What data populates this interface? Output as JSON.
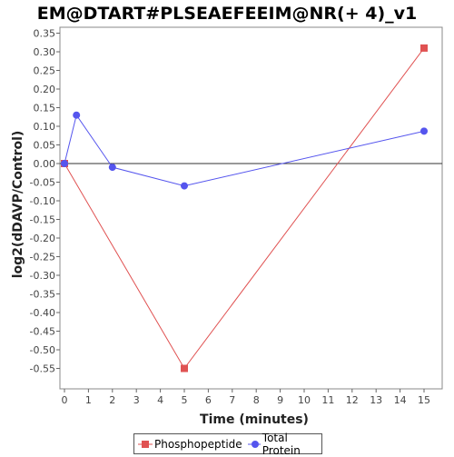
{
  "chart_data": {
    "type": "line",
    "title": "EM@DTART#PLSEAEFEEIM@NR(+ 4)_v1",
    "xlabel": "Time (minutes)",
    "ylabel": "log2(dDAVP/Control)",
    "xlim": [
      0,
      15.8
    ],
    "ylim": [
      -0.59,
      0.35
    ],
    "xticks": [
      "0",
      "1",
      "2",
      "3",
      "4",
      "5",
      "6",
      "7",
      "8",
      "9",
      "10",
      "11",
      "12",
      "13",
      "14",
      "15"
    ],
    "yticks": [
      "0.35",
      "0.30",
      "0.25",
      "0.20",
      "0.15",
      "0.10",
      "0.05",
      "0.00",
      "-0.05",
      "-0.10",
      "-0.15",
      "-0.20",
      "-0.25",
      "-0.30",
      "-0.35",
      "-0.40",
      "-0.45",
      "-0.50",
      "-0.55"
    ],
    "zero_line": true,
    "grid": false,
    "legend_position": "bottom",
    "series": [
      {
        "name": "Phosphopeptide",
        "color": "#e05252",
        "marker": "square",
        "x": [
          0,
          5,
          15
        ],
        "y": [
          0.0,
          -0.55,
          0.31
        ]
      },
      {
        "name": "Total Protein",
        "color": "#5555ee",
        "marker": "circle",
        "x": [
          0,
          0.5,
          2,
          5,
          15
        ],
        "y": [
          0.0,
          0.13,
          -0.01,
          -0.06,
          0.087
        ]
      }
    ]
  }
}
